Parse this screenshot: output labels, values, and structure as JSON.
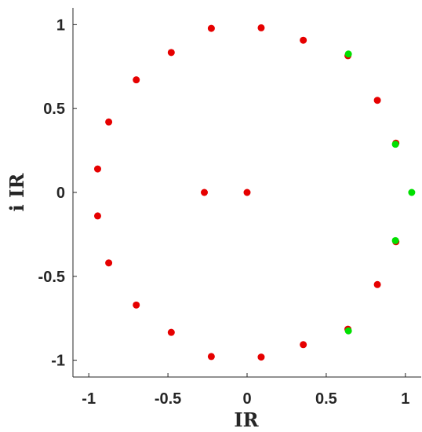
{
  "chart_data": {
    "type": "scatter",
    "title": "",
    "xlabel": "IR",
    "ylabel": "i IR",
    "xlim": [
      -1.1,
      1.1
    ],
    "ylim": [
      -1.1,
      1.1
    ],
    "x_ticks": [
      -1,
      -0.5,
      0,
      0.5,
      1
    ],
    "x_tick_labels": [
      "-1",
      "-0.5",
      "0",
      "0.5",
      "1"
    ],
    "y_ticks": [
      1,
      0.5,
      0,
      -0.5,
      -1
    ],
    "y_tick_labels": [
      "1",
      "0.5",
      "0",
      "-0.5",
      "-1"
    ],
    "grid": false,
    "series": [
      {
        "color": "#e60000",
        "points": [
          [
            -0.27,
            0
          ],
          [
            0,
            0
          ],
          [
            -0.226,
            0.978
          ],
          [
            0.089,
            0.981
          ],
          [
            0.355,
            0.907
          ],
          [
            0.637,
            0.815
          ],
          [
            0.823,
            0.549
          ],
          [
            0.94,
            0.294
          ],
          [
            0.94,
            -0.294
          ],
          [
            0.823,
            -0.549
          ],
          [
            0.637,
            -0.815
          ],
          [
            0.355,
            -0.907
          ],
          [
            0.089,
            -0.981
          ],
          [
            -0.226,
            -0.978
          ],
          [
            -0.479,
            -0.834
          ],
          [
            -0.7,
            -0.671
          ],
          [
            -0.874,
            -0.42
          ],
          [
            -0.944,
            -0.14
          ],
          [
            -0.944,
            0.14
          ],
          [
            -0.874,
            0.42
          ],
          [
            -0.7,
            0.671
          ],
          [
            -0.479,
            0.834
          ]
        ]
      },
      {
        "color": "#00e000",
        "points": [
          [
            0.64,
            0.825
          ],
          [
            0.937,
            0.287
          ],
          [
            1.04,
            0
          ],
          [
            0.937,
            -0.287
          ],
          [
            0.64,
            -0.825
          ]
        ]
      }
    ]
  }
}
